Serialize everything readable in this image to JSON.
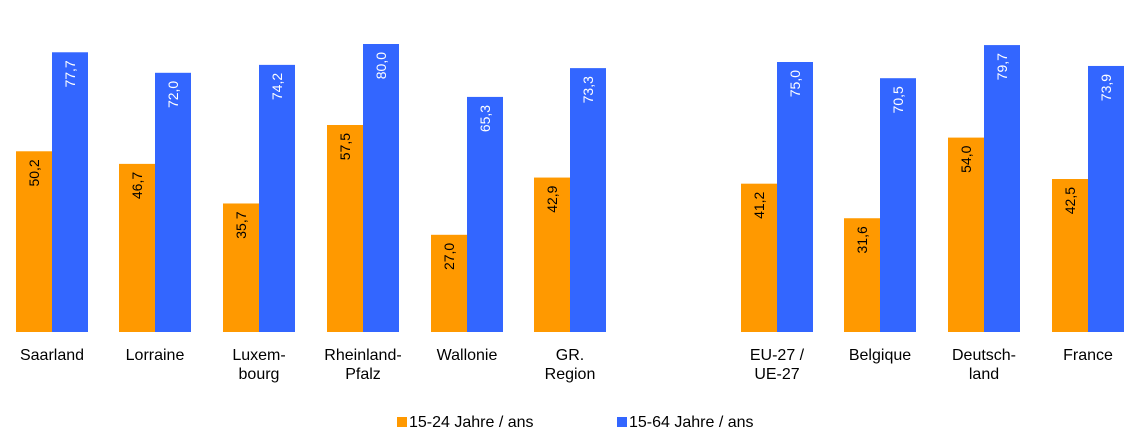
{
  "chart_data": {
    "type": "bar",
    "categories": [
      [
        "Saarland"
      ],
      [
        "Lorraine"
      ],
      [
        "Luxem-",
        "bourg"
      ],
      [
        "Rheinland-",
        "Pfalz"
      ],
      [
        "Wallonie"
      ],
      [
        "GR.",
        "Region"
      ],
      [
        "EU-27 /",
        "UE-27"
      ],
      [
        "Belgique"
      ],
      [
        "Deutsch-",
        "land"
      ],
      [
        "France"
      ]
    ],
    "series": [
      {
        "name": "15-24 Jahre / ans",
        "color": "#ff9900",
        "values": [
          50.2,
          46.7,
          35.7,
          57.5,
          27.0,
          42.9,
          41.2,
          31.6,
          54.0,
          42.5
        ],
        "labels": [
          "50,2",
          "46,7",
          "35,7",
          "57,5",
          "27,0",
          "42,9",
          "41,2",
          "31,6",
          "54,0",
          "42,5"
        ]
      },
      {
        "name": "15-64 Jahre / ans",
        "color": "#3366ff",
        "values": [
          77.7,
          72.0,
          74.2,
          80.0,
          65.3,
          73.3,
          75.0,
          70.5,
          79.7,
          73.9
        ],
        "labels": [
          "77,7",
          "72,0",
          "74,2",
          "80,0",
          "65,3",
          "73,3",
          "75,0",
          "70,5",
          "79,7",
          "73,9"
        ]
      }
    ],
    "ylim": [
      0,
      80
    ],
    "grid": false,
    "legend": "bottom-center",
    "title": "",
    "xlabel": "",
    "ylabel": ""
  }
}
